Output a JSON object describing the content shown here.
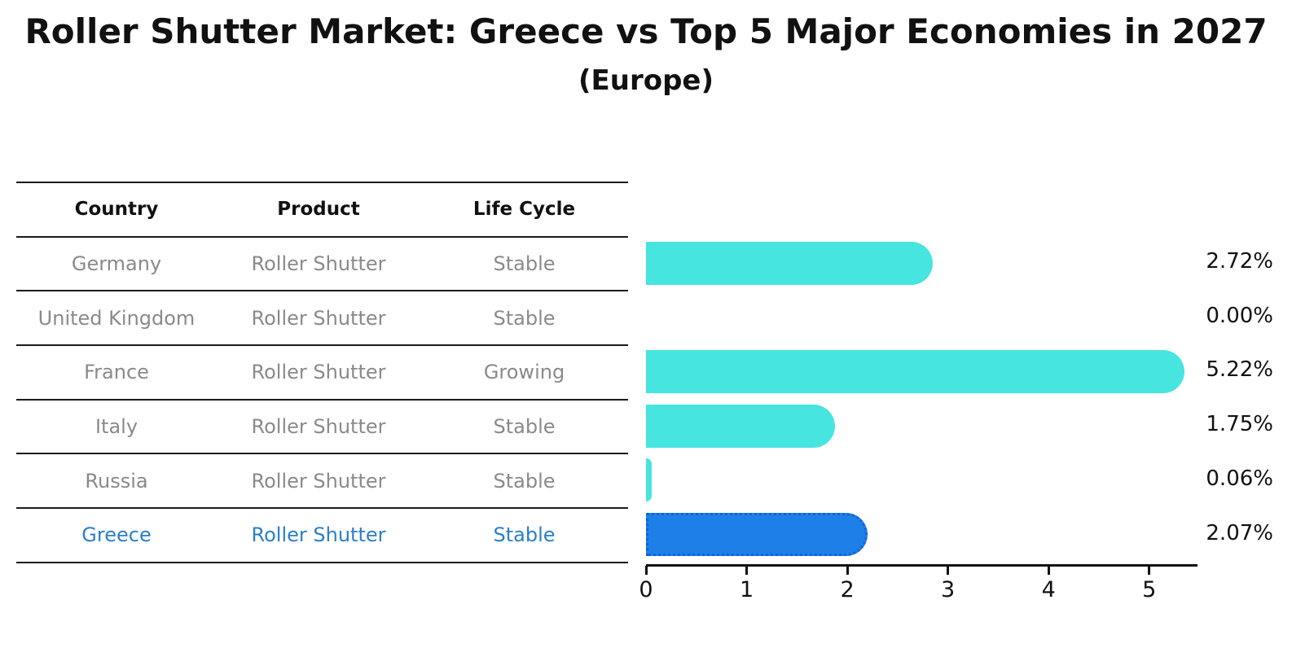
{
  "title": "Roller Shutter Market: Greece vs Top 5 Major Economies in 2027",
  "subtitle": "(Europe)",
  "colors": {
    "bar_default": "#46e5df",
    "bar_highlight": "#1e7fe8",
    "bar_highlight_border": "#1064d9",
    "highlight_text": "#2b7fc8",
    "row_text": "#8a8a8a",
    "axis_text": "#111111"
  },
  "table": {
    "headers": [
      "Country",
      "Product",
      "Life Cycle"
    ],
    "rows": [
      {
        "country": "Germany",
        "product": "Roller Shutter",
        "life_cycle": "Stable",
        "highlight": false
      },
      {
        "country": "United Kingdom",
        "product": "Roller Shutter",
        "life_cycle": "Stable",
        "highlight": false
      },
      {
        "country": "France",
        "product": "Roller Shutter",
        "life_cycle": "Growing",
        "highlight": false
      },
      {
        "country": "Italy",
        "product": "Roller Shutter",
        "life_cycle": "Stable",
        "highlight": false
      },
      {
        "country": "Russia",
        "product": "Roller Shutter",
        "life_cycle": "Stable",
        "highlight": false
      },
      {
        "country": "Greece",
        "product": "Roller Shutter",
        "life_cycle": "Stable",
        "highlight": true
      }
    ]
  },
  "chart_data": {
    "type": "bar",
    "orientation": "horizontal",
    "title": "Roller Shutter Market: Greece vs Top 5 Major Economies in 2027 (Europe)",
    "categories": [
      "Germany",
      "United Kingdom",
      "France",
      "Italy",
      "Russia",
      "Greece"
    ],
    "values": [
      2.72,
      0.0,
      5.22,
      1.75,
      0.06,
      2.07
    ],
    "bar_labels": [
      "2.72%",
      "0.00%",
      "5.22%",
      "1.75%",
      "0.06%",
      "2.07%"
    ],
    "highlight_category": "Greece",
    "xlabel": "",
    "ylabel": "",
    "xlim": [
      0,
      5.48
    ],
    "xticks": [
      0,
      1,
      2,
      3,
      4,
      5
    ],
    "grid": false,
    "legend": false
  }
}
